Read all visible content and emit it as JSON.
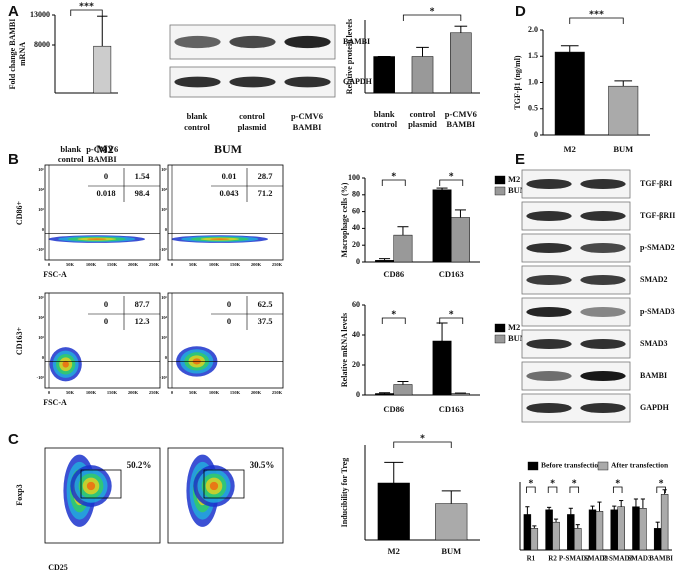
{
  "panel_labels": [
    "A",
    "B",
    "C",
    "D",
    "E"
  ],
  "blots_A": {
    "bands": [
      "BAMBI",
      "GAPDH"
    ],
    "lanes": [
      [
        "blank",
        "control"
      ],
      [
        "control",
        "plasmid"
      ],
      [
        "p-CMV6",
        "BAMBI"
      ]
    ]
  },
  "blots_E": {
    "bands": [
      "TGF-βRI",
      "TGF-βRII",
      "p-SMAD2",
      "SMAD2",
      "p-SMAD3",
      "SMAD3",
      "BAMBI",
      "GAPDH"
    ]
  },
  "flow_B": {
    "columns": [
      "M2",
      "BUM"
    ],
    "xlabel": "FSC-A",
    "xticks": [
      "0",
      "50K",
      "100K",
      "150K",
      "200K",
      "250K"
    ],
    "yticks": [
      "-10³",
      "0",
      "10³",
      "10⁴",
      "10⁵"
    ],
    "rows": [
      {
        "ylabel": "CD86+",
        "quadrants": [
          [
            0,
            1.54,
            0.018,
            98.4
          ],
          [
            0.01,
            28.7,
            0.043,
            71.2
          ]
        ]
      },
      {
        "ylabel": "CD163+",
        "quadrants": [
          [
            0,
            87.7,
            0,
            12.3
          ],
          [
            0,
            62.5,
            0,
            37.5
          ]
        ]
      }
    ]
  },
  "flow_C": {
    "xlabel": "CD25",
    "ylabel": "Foxp3",
    "gates": [
      "50.2%",
      "30.5%"
    ]
  },
  "chart_data": [
    {
      "type": "bar",
      "ylabel": [
        "Fold change BAMBI",
        "mRNA"
      ],
      "categories": [
        [
          "blank",
          "control"
        ],
        [
          "p-CMV6",
          "BAMBI"
        ]
      ],
      "values": [
        1,
        7800
      ],
      "errors": [
        0,
        5000
      ],
      "colors": [
        "#000000",
        "#cccccc"
      ],
      "ylim": [
        0,
        13000
      ],
      "yticks": [
        8000,
        13000
      ],
      "annotations": [
        "***"
      ]
    },
    {
      "type": "bar",
      "ylabel": [
        "Relative protein levels"
      ],
      "categories": [
        [
          "blank",
          "control"
        ],
        [
          "control",
          "plasmid"
        ],
        [
          "p-CMV6",
          "BAMBI"
        ]
      ],
      "values": [
        1,
        1,
        1.65
      ],
      "errors": [
        0,
        0.25,
        0.18
      ],
      "colors": [
        "#000000",
        "#999999",
        "#999999"
      ],
      "ylim": [
        0,
        2
      ],
      "annotations": [
        "*"
      ]
    },
    {
      "type": "bar",
      "ylabel": [
        "TGF-β1 (ng/ml)"
      ],
      "categories": [
        [
          "M2"
        ],
        [
          "BUM"
        ]
      ],
      "values": [
        1.58,
        0.93
      ],
      "errors": [
        0.12,
        0.1
      ],
      "colors": [
        "#000000",
        "#aaaaaa"
      ],
      "ylim": [
        0,
        2
      ],
      "yticks": [
        0,
        {
          "value": 0.5,
          "label": "0.5"
        },
        {
          "value": 1,
          "label": "1.0"
        },
        {
          "value": 1.5,
          "label": "1.5"
        },
        {
          "value": 2,
          "label": "2.0"
        }
      ],
      "annotations": [
        "***"
      ]
    },
    {
      "type": "bar",
      "ylabel": [
        "Macrophage cells (%)"
      ],
      "categories": [
        [
          "CD86"
        ],
        [
          "CD163"
        ]
      ],
      "series": [
        {
          "name": "M2",
          "color": "#000000",
          "values": [
            2,
            86
          ],
          "errors": [
            2,
            2
          ]
        },
        {
          "name": "BUM",
          "color": "#999999",
          "values": [
            32,
            53
          ],
          "errors": [
            10,
            9
          ]
        }
      ],
      "ylim": [
        0,
        100
      ],
      "yticks": [
        0,
        20,
        40,
        60,
        80,
        100
      ],
      "annotations": [
        "*",
        "*"
      ]
    },
    {
      "type": "bar",
      "ylabel": [
        "Relative  mRNA levels"
      ],
      "categories": [
        [
          "CD86"
        ],
        [
          "CD163"
        ]
      ],
      "series": [
        {
          "name": "M2",
          "color": "#000000",
          "values": [
            1,
            36
          ],
          "errors": [
            0.5,
            12
          ]
        },
        {
          "name": "BUM",
          "color": "#999999",
          "values": [
            7,
            1
          ],
          "errors": [
            2,
            0.3
          ]
        }
      ],
      "ylim": [
        0,
        60
      ],
      "yticks": [
        0,
        20,
        40,
        60
      ],
      "annotations": [
        "*",
        "*"
      ]
    },
    {
      "type": "bar",
      "ylabel": [
        "Inducibility for Treg"
      ],
      "categories": [
        [
          "M2"
        ],
        [
          "BUM"
        ]
      ],
      "values": [
        36,
        23
      ],
      "errors": [
        13,
        8
      ],
      "colors": [
        "#000000",
        "#aaaaaa"
      ],
      "ylim": [
        0,
        60
      ],
      "annotations": [
        "*"
      ]
    },
    {
      "type": "bar",
      "categories": [
        [
          "R1"
        ],
        [
          "R2"
        ],
        [
          "P-SMAD2"
        ],
        [
          "SMAD2"
        ],
        [
          "P-SMAD3"
        ],
        [
          "SMAD3"
        ],
        [
          "BAMBI"
        ]
      ],
      "series": [
        {
          "name": "Before transfection",
          "color": "#000000",
          "values": [
            1.15,
            1.3,
            1.15,
            1.3,
            1.3,
            1.4,
            0.7
          ],
          "errors": [
            0.25,
            0.08,
            0.2,
            0.12,
            0.12,
            0.25,
            0.2
          ]
        },
        {
          "name": "After transfection",
          "color": "#aaaaaa",
          "values": [
            0.7,
            0.9,
            0.7,
            1.25,
            1.4,
            1.35,
            1.8
          ],
          "errors": [
            0.08,
            0.1,
            0.12,
            0.3,
            0.2,
            0.3,
            0.15
          ]
        }
      ],
      "ylim": [
        0,
        2.2
      ],
      "annotations": [
        "*",
        "*",
        "*",
        "*",
        "*"
      ]
    }
  ]
}
